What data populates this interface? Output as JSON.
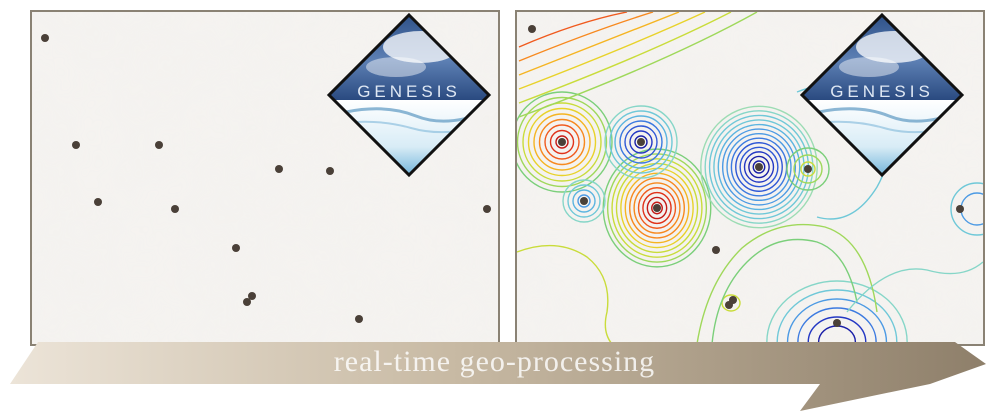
{
  "logo_text": "GENESIS",
  "caption": "real-time geo-processing",
  "colors": {
    "panel_border": "#8a8274",
    "panel_bg": "#f5f3f0",
    "point": "#4a4038",
    "arrow_light": "#ece4d8",
    "arrow_dark": "#8e7f6a"
  }
}
